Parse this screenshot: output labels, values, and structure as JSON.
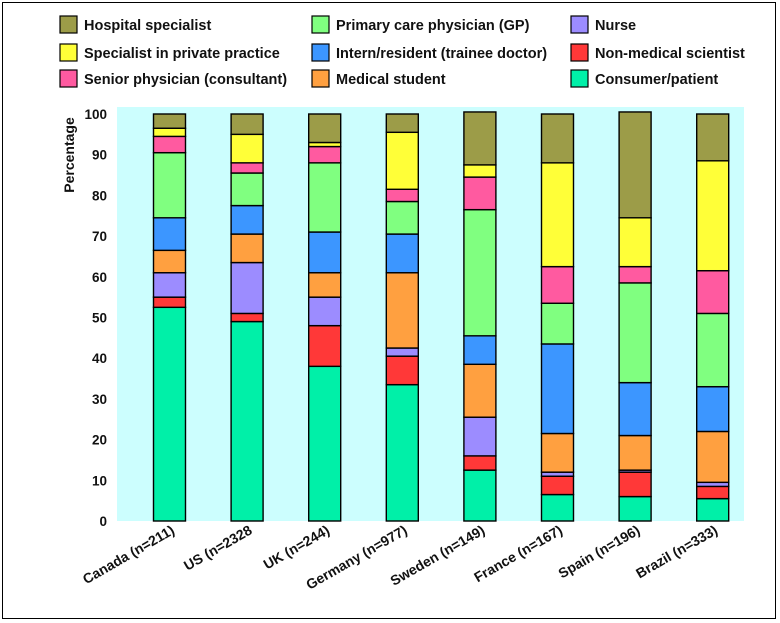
{
  "chart_data": {
    "type": "bar",
    "stacked": true,
    "ylabel": "Percentage",
    "xlabel": "",
    "ylim": [
      0,
      100
    ],
    "yticks": [
      0,
      10,
      20,
      30,
      40,
      50,
      60,
      70,
      80,
      90,
      100
    ],
    "grid": false,
    "plot_background": "#ccfefe",
    "legend_position": "top",
    "categories": [
      "Canada (n=211)",
      "US (n=2328",
      "UK (n=244)",
      "Germany (n=977)",
      "Sweden (n=149)",
      "France (n=167)",
      "Spain (n=196)",
      "Brazil (n=333)"
    ],
    "series": [
      {
        "name": "Consumer/patient",
        "color": "#00f0a8",
        "values": [
          52.5,
          49,
          38,
          33.5,
          12.5,
          6.5,
          6,
          5.5
        ]
      },
      {
        "name": "Non-medical scientist",
        "color": "#ff3838",
        "values": [
          2.5,
          2,
          10,
          7,
          3.5,
          4.5,
          6,
          3
        ]
      },
      {
        "name": "Nurse",
        "color": "#9c8cff",
        "values": [
          6,
          12.5,
          7,
          2,
          9.5,
          1,
          0.5,
          1
        ]
      },
      {
        "name": "Medical student",
        "color": "#ffa040",
        "values": [
          5.5,
          7,
          6,
          18.5,
          13,
          9.5,
          8.5,
          12.5
        ]
      },
      {
        "name": "Intern/resident (trainee doctor)",
        "color": "#3c96ff",
        "values": [
          8,
          7,
          10,
          9.5,
          7,
          22,
          13,
          11
        ]
      },
      {
        "name": "Primary care physician (GP)",
        "color": "#80ff80",
        "values": [
          16,
          8,
          17,
          8,
          31,
          10,
          24.5,
          18
        ]
      },
      {
        "name": "Senior physician (consultant)",
        "color": "#ff5aa0",
        "values": [
          4,
          2.5,
          4,
          3,
          8,
          9,
          4,
          10.5
        ]
      },
      {
        "name": "Specialist in private practice",
        "color": "#ffff38",
        "values": [
          2,
          7,
          1,
          14,
          3,
          25.5,
          12,
          27
        ]
      },
      {
        "name": "Hospital specialist",
        "color": "#9c9c48",
        "values": [
          3.5,
          5,
          7,
          4.5,
          13,
          12,
          26,
          11.5
        ]
      }
    ],
    "legend": [
      [
        "Hospital specialist",
        "Primary care physician (GP)",
        "Nurse"
      ],
      [
        "Specialist in private practice",
        "Intern/resident (trainee doctor)",
        "Non-medical scientist"
      ],
      [
        "Senior physician (consultant)",
        "Medical student",
        "Consumer/patient"
      ]
    ]
  }
}
